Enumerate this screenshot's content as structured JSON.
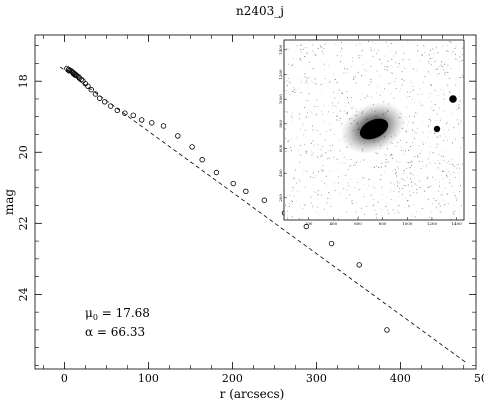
{
  "chart_data": {
    "type": "scatter",
    "title": "n2403_j",
    "xlabel": "r (arcsecs)",
    "ylabel": "mag",
    "xlim": [
      -35,
      490
    ],
    "ylim": [
      26.1,
      16.7
    ],
    "y_inverted": true,
    "x_ticks": [
      0,
      100,
      200,
      300,
      400,
      500
    ],
    "x_tick_labels": [
      "0",
      "100",
      "200",
      "300",
      "400",
      "500"
    ],
    "y_ticks": [
      18,
      20,
      22,
      24
    ],
    "y_tick_labels": [
      "18",
      "20",
      "22",
      "24"
    ],
    "grid": false,
    "series": [
      {
        "marker": "open-circle",
        "x": [
          3,
          5,
          6,
          8,
          9,
          10,
          11,
          12,
          13,
          14,
          15,
          17,
          18,
          20,
          22,
          25,
          28,
          32,
          37,
          42,
          48,
          55,
          63,
          72,
          82,
          92,
          104,
          118,
          135,
          152,
          164,
          181,
          201,
          216,
          238,
          262,
          288,
          318,
          351,
          384
        ],
        "y": [
          17.64,
          17.67,
          17.7,
          17.71,
          17.73,
          17.76,
          17.77,
          17.79,
          17.81,
          17.83,
          17.85,
          17.88,
          17.91,
          17.95,
          17.99,
          18.07,
          18.14,
          18.24,
          18.36,
          18.48,
          18.58,
          18.7,
          18.82,
          18.9,
          18.96,
          19.09,
          19.17,
          19.26,
          19.54,
          19.85,
          20.21,
          20.57,
          20.88,
          21.1,
          21.35,
          21.71,
          22.09,
          22.57,
          23.17,
          25.0
        ]
      },
      {
        "marker": "dashed-line",
        "x": [
          -5,
          480
        ],
        "y": [
          17.6,
          25.95
        ]
      }
    ],
    "annotations": [
      {
        "symbol": "μ",
        "subscript": "0",
        "text": " = 17.68"
      },
      {
        "symbol": "α",
        "text": " = 66.33"
      }
    ],
    "inset": {
      "type": "image",
      "x_tick_labels": [
        "200",
        "400",
        "600",
        "800",
        "1000",
        "1200",
        "1400"
      ],
      "y_tick_labels": [
        "1400",
        "1200",
        "1000",
        "800",
        "600",
        "400",
        "200"
      ]
    }
  }
}
